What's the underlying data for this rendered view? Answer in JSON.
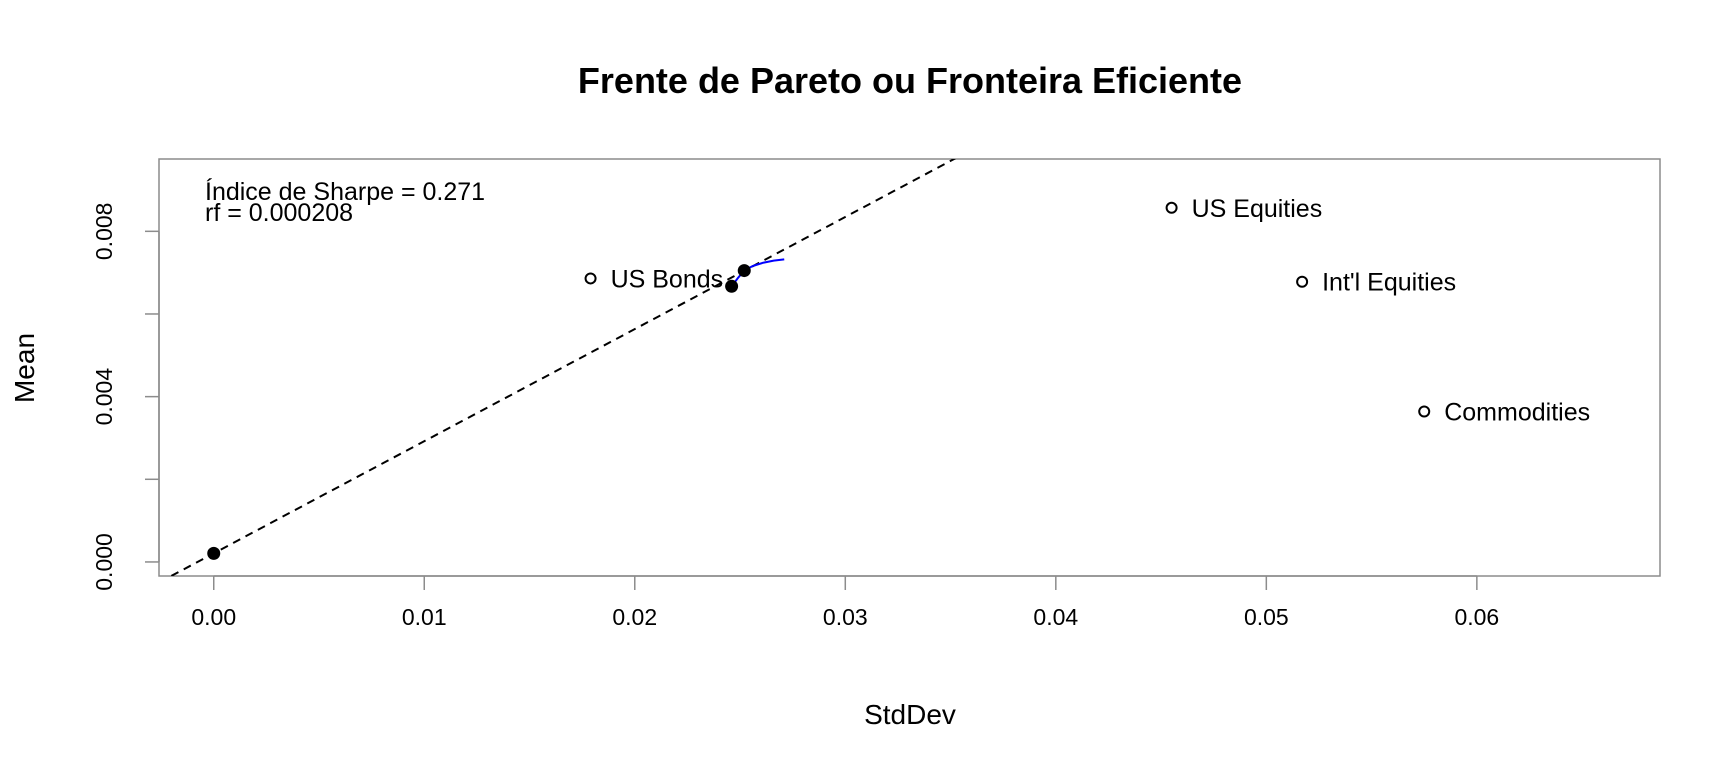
{
  "chart_data": {
    "type": "scatter",
    "title": "Frente de Pareto ou Fronteira Eficiente",
    "xlabel": "StdDev",
    "ylabel": "Mean",
    "xlim": [
      -0.0026,
      0.0687
    ],
    "ylim": [
      -0.00034,
      0.00975
    ],
    "x_ticks": [
      0.0,
      0.01,
      0.02,
      0.03,
      0.04,
      0.05,
      0.06
    ],
    "x_tick_labels": [
      "0.00",
      "0.01",
      "0.02",
      "0.03",
      "0.04",
      "0.05",
      "0.06"
    ],
    "y_ticks": [
      0.0,
      0.002,
      0.004,
      0.006,
      0.008
    ],
    "y_tick_labels": [
      "0.000",
      "",
      "0.004",
      "",
      "0.008"
    ],
    "grid": false,
    "annotations": [
      "Índice de Sharpe = 0.271",
      "rf = 0.000208"
    ],
    "assets": [
      {
        "label": "US Bonds",
        "x": 0.0179,
        "y": 0.00686
      },
      {
        "label": "US Equities",
        "x": 0.0455,
        "y": 0.00857
      },
      {
        "label": "Int'l Equities",
        "x": 0.0517,
        "y": 0.00678
      },
      {
        "label": "Commodities",
        "x": 0.0575,
        "y": 0.00364
      }
    ],
    "key_points": [
      {
        "x": 0.0,
        "y": 0.000208
      },
      {
        "x": 0.0246,
        "y": 0.00667
      },
      {
        "x": 0.0252,
        "y": 0.00705
      }
    ],
    "frontier": {
      "color": "#0000ff",
      "x": [
        0.0246,
        0.0249,
        0.0252,
        0.0256,
        0.0261,
        0.0266,
        0.0271
      ],
      "y": [
        0.00667,
        0.00687,
        0.00705,
        0.00716,
        0.00724,
        0.00729,
        0.00732
      ]
    },
    "tangent_line": {
      "x": [
        -0.0026,
        0.0355
      ],
      "y": [
        -0.000497,
        0.00984
      ]
    }
  }
}
